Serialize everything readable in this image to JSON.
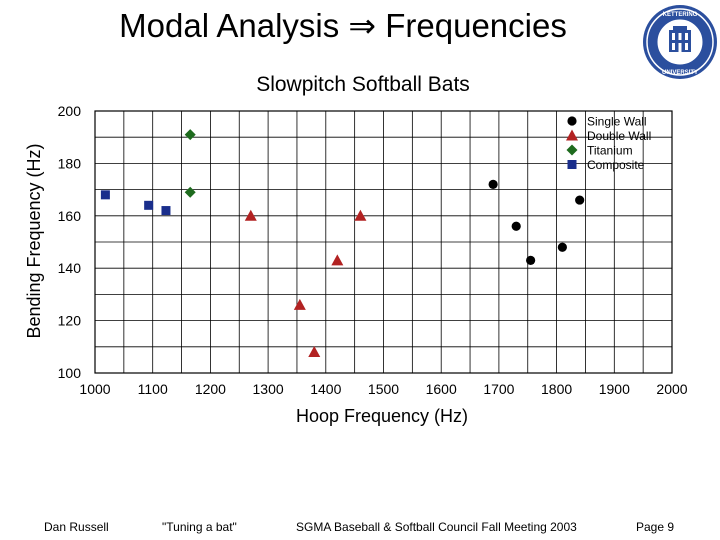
{
  "slide": {
    "title": "Modal Analysis ⇒ Frequencies",
    "seal_text": "KETTERING UNIVERSITY"
  },
  "footer": {
    "author": "Dan Russell",
    "talk": "\"Tuning a bat\"",
    "event": "SGMA Baseball & Softball Council Fall Meeting 2003",
    "page": "Page 9"
  },
  "colors": {
    "single_wall": "#000000",
    "double_wall": "#b22222",
    "titanium": "#1e6b1e",
    "composite": "#1a2e8c",
    "grid": "#000000"
  },
  "chart_data": {
    "type": "scatter",
    "title": "Slowpitch Softball Bats",
    "xlabel": "Hoop Frequency (Hz)",
    "ylabel": "Bending Frequency (Hz)",
    "xlim": [
      1000,
      2000
    ],
    "ylim": [
      100,
      200
    ],
    "x_ticks": [
      1000,
      1100,
      1200,
      1300,
      1400,
      1500,
      1600,
      1700,
      1800,
      1900,
      2000
    ],
    "y_ticks": [
      100,
      120,
      140,
      160,
      180,
      200
    ],
    "x_grid_step": 50,
    "y_grid_step": 10,
    "grid": true,
    "legend_position": "top-right",
    "series": [
      {
        "name": "Single Wall",
        "marker": "circle",
        "points": [
          [
            1690,
            172
          ],
          [
            1730,
            156
          ],
          [
            1755,
            143
          ],
          [
            1810,
            148
          ],
          [
            1840,
            166
          ]
        ]
      },
      {
        "name": "Double Wall",
        "marker": "triangle",
        "points": [
          [
            1270,
            160
          ],
          [
            1355,
            126
          ],
          [
            1380,
            108
          ],
          [
            1420,
            143
          ],
          [
            1460,
            160
          ]
        ]
      },
      {
        "name": "Titanium",
        "marker": "diamond",
        "points": [
          [
            1165,
            191
          ],
          [
            1165,
            169
          ]
        ]
      },
      {
        "name": "Composite",
        "marker": "square",
        "points": [
          [
            1018,
            168
          ],
          [
            1093,
            164
          ],
          [
            1123,
            162
          ]
        ]
      }
    ]
  }
}
